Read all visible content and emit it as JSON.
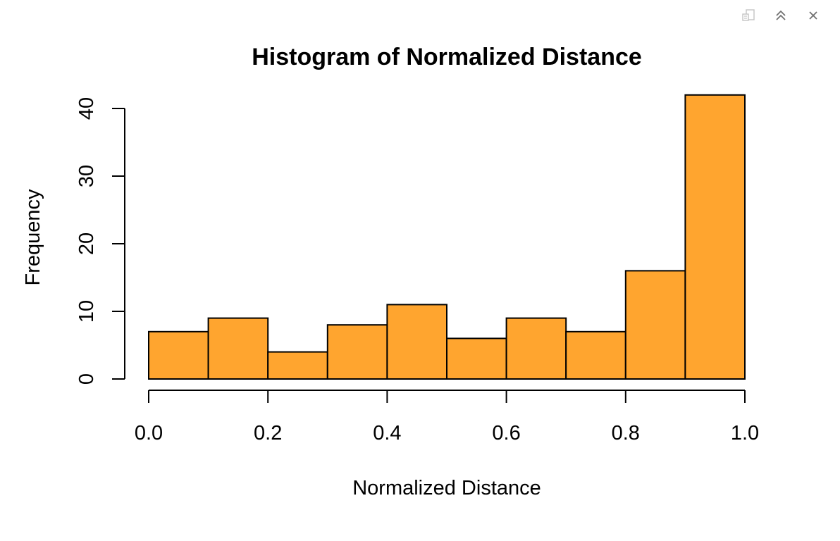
{
  "toolbar": {
    "icons": [
      "export-icon",
      "collapse-icon",
      "close-icon"
    ]
  },
  "chart_data": {
    "type": "bar",
    "title": "Histogram of Normalized Distance",
    "xlabel": "Normalized Distance",
    "ylabel": "Frequency",
    "bins": [
      {
        "start": 0.0,
        "end": 0.1
      },
      {
        "start": 0.1,
        "end": 0.2
      },
      {
        "start": 0.2,
        "end": 0.3
      },
      {
        "start": 0.3,
        "end": 0.4
      },
      {
        "start": 0.4,
        "end": 0.5
      },
      {
        "start": 0.5,
        "end": 0.6
      },
      {
        "start": 0.6,
        "end": 0.7
      },
      {
        "start": 0.7,
        "end": 0.8
      },
      {
        "start": 0.8,
        "end": 0.9
      },
      {
        "start": 0.9,
        "end": 1.0
      }
    ],
    "values": [
      7,
      9,
      4,
      8,
      11,
      6,
      9,
      7,
      16,
      42
    ],
    "xlim": [
      0,
      1
    ],
    "ylim": [
      0,
      42
    ],
    "xticks": [
      "0.0",
      "0.2",
      "0.4",
      "0.6",
      "0.8",
      "1.0"
    ],
    "xtick_values": [
      0,
      0.2,
      0.4,
      0.6,
      0.8,
      1.0
    ],
    "yticks": [
      "0",
      "10",
      "20",
      "30",
      "40"
    ],
    "ytick_values": [
      0,
      10,
      20,
      30,
      40
    ],
    "bar_color": "#FFA52F",
    "grid": false,
    "legend": "none"
  }
}
